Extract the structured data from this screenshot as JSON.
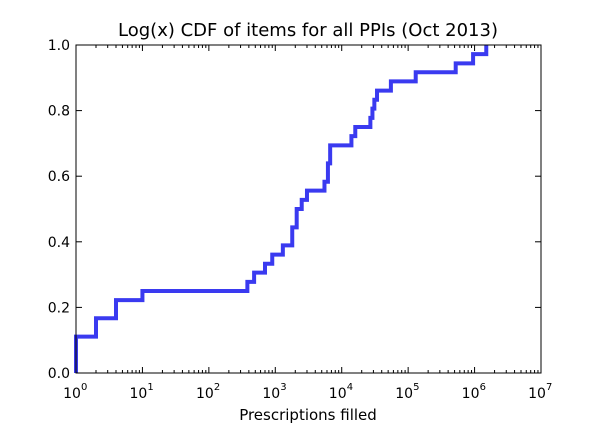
{
  "chart_data": {
    "type": "line",
    "title": "Log(x) CDF of items for all PPIs (Oct 2013)",
    "xlabel": "Prescriptions filled",
    "ylabel": "",
    "xscale": "log",
    "xlim": [
      1,
      10000000
    ],
    "ylim": [
      0.0,
      1.0
    ],
    "grid": false,
    "legend": "none",
    "x_ticks": [
      {
        "base": "10",
        "exp": "0"
      },
      {
        "base": "10",
        "exp": "1"
      },
      {
        "base": "10",
        "exp": "2"
      },
      {
        "base": "10",
        "exp": "3"
      },
      {
        "base": "10",
        "exp": "4"
      },
      {
        "base": "10",
        "exp": "5"
      },
      {
        "base": "10",
        "exp": "6"
      },
      {
        "base": "10",
        "exp": "7"
      }
    ],
    "y_ticks": [
      "0.0",
      "0.2",
      "0.4",
      "0.6",
      "0.8",
      "1.0"
    ],
    "series": [
      {
        "color": "#3a3af0",
        "drawstyle": "steps-post",
        "x": [
          1,
          2,
          4,
          10,
          380,
          480,
          700,
          900,
          1300,
          1800,
          2100,
          2500,
          3000,
          5500,
          6200,
          6700,
          14000,
          16000,
          27000,
          29000,
          31000,
          34000,
          55000,
          130000,
          520000,
          950000,
          1500000
        ],
        "y": [
          0.111,
          0.167,
          0.222,
          0.25,
          0.278,
          0.306,
          0.333,
          0.361,
          0.389,
          0.444,
          0.5,
          0.528,
          0.556,
          0.583,
          0.639,
          0.694,
          0.722,
          0.75,
          0.778,
          0.806,
          0.833,
          0.861,
          0.889,
          0.917,
          0.944,
          0.972,
          1.0
        ]
      }
    ]
  }
}
